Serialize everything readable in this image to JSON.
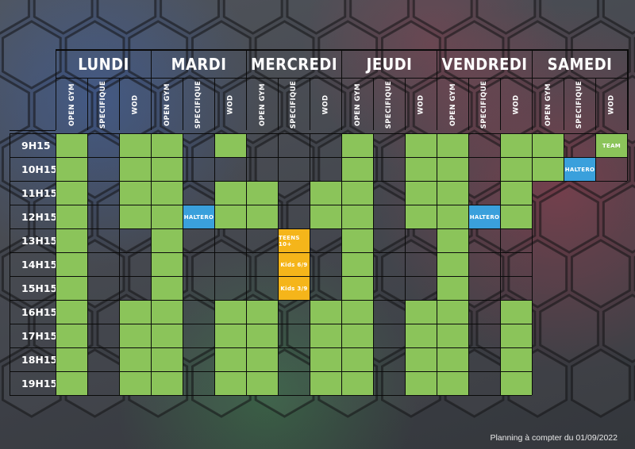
{
  "days": [
    {
      "name": "LUNDI"
    },
    {
      "name": "MARDI"
    },
    {
      "name": "MERCREDI"
    },
    {
      "name": "JEUDI"
    },
    {
      "name": "VENDREDI"
    },
    {
      "name": "SAMEDI"
    }
  ],
  "session_types": [
    "OPEN GYM",
    "SPECIFIQUE",
    "WOD"
  ],
  "times": [
    "9H15",
    "10H15",
    "11H15",
    "12H15",
    "13H15",
    "14H15",
    "15H15",
    "16H15",
    "17H15",
    "18H15",
    "19H15"
  ],
  "colors": {
    "green": "#8bc45a",
    "blue": "#3aa0dc",
    "orange": "#f5b51a"
  },
  "grid": [
    [
      "G",
      "",
      "G",
      "G",
      "",
      "G",
      "",
      "",
      "",
      "G",
      "",
      "G",
      "G",
      "",
      "G",
      "G",
      "",
      "G:TEAM"
    ],
    [
      "G",
      "",
      "G",
      "G",
      "",
      "",
      "",
      "",
      "",
      "G",
      "",
      "G",
      "G",
      "",
      "G",
      "G",
      "B:HALTERO",
      ""
    ],
    [
      "G",
      "",
      "G",
      "G",
      "",
      "G",
      "G",
      "",
      "G",
      "G",
      "",
      "G",
      "G",
      "",
      "G",
      "-",
      "-",
      "-"
    ],
    [
      "G",
      "",
      "G",
      "G",
      "B:HALTERO",
      "G",
      "G",
      "",
      "G",
      "G",
      "",
      "G",
      "G",
      "B:HALTERO",
      "G",
      "-",
      "-",
      "-"
    ],
    [
      "G",
      "",
      "",
      "G",
      "",
      "",
      "",
      "O:TEENS 10+",
      "",
      "G",
      "",
      "",
      "G",
      "",
      "",
      "-",
      "-",
      "-"
    ],
    [
      "G",
      "",
      "",
      "G",
      "",
      "",
      "",
      "O:Kids 6/9",
      "",
      "G",
      "",
      "",
      "G",
      "",
      "",
      "-",
      "-",
      "-"
    ],
    [
      "G",
      "",
      "",
      "G",
      "",
      "",
      "",
      "O:Kids 3/9",
      "",
      "G",
      "",
      "",
      "G",
      "",
      "",
      "-",
      "-",
      "-"
    ],
    [
      "G",
      "",
      "G",
      "G",
      "",
      "G",
      "G",
      "",
      "G",
      "G",
      "",
      "G",
      "G",
      "",
      "G",
      "-",
      "-",
      "-"
    ],
    [
      "G",
      "",
      "G",
      "G",
      "",
      "G",
      "G",
      "",
      "G",
      "G",
      "",
      "G",
      "G",
      "",
      "G",
      "-",
      "-",
      "-"
    ],
    [
      "G",
      "",
      "G",
      "G",
      "",
      "G",
      "G",
      "",
      "G",
      "G",
      "",
      "G",
      "G",
      "",
      "G",
      "-",
      "-",
      "-"
    ],
    [
      "G",
      "",
      "G",
      "G",
      "",
      "G",
      "G",
      "",
      "G",
      "G",
      "",
      "G",
      "G",
      "",
      "G",
      "-",
      "-",
      "-"
    ]
  ],
  "footer": {
    "note": "Planning à compter du 01/09/2022"
  }
}
